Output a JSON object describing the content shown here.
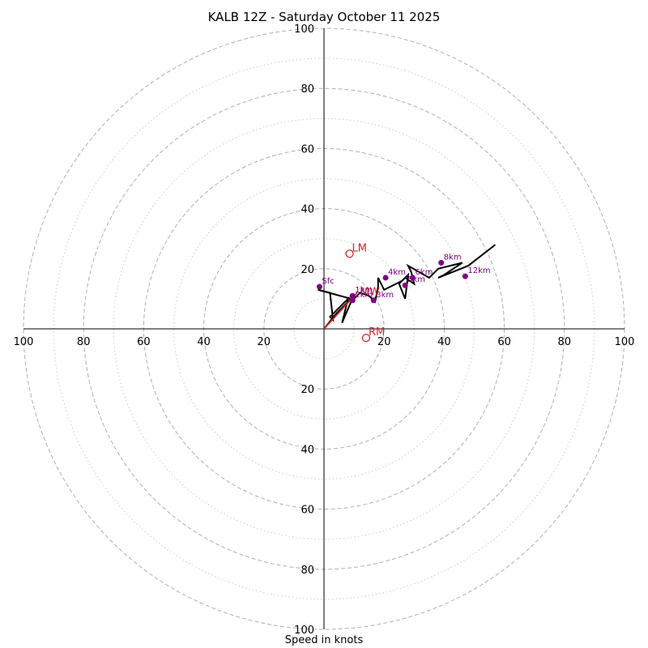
{
  "chart_data": {
    "type": "hodograph",
    "title": "KALB 12Z - Saturday October 11 2025",
    "xlabel": "Speed in knots",
    "max_speed": 100,
    "ring_major": [
      20,
      40,
      60,
      80,
      100
    ],
    "ring_minor": [
      10,
      30,
      50,
      70,
      90
    ],
    "tick_labels": {
      "left": [
        "100",
        "80",
        "60",
        "40",
        "20"
      ],
      "right": [
        "20",
        "40",
        "60",
        "80",
        "100"
      ],
      "top": [
        "20",
        "40",
        "60",
        "80",
        "100"
      ],
      "bottom": [
        "20",
        "40",
        "60",
        "80",
        "100"
      ]
    },
    "tick_values": [
      100,
      80,
      60,
      40,
      20
    ],
    "tick_values_pos": [
      20,
      40,
      60,
      80,
      100
    ],
    "hodograph_line": [
      [
        0,
        0
      ],
      [
        4,
        5
      ],
      [
        9,
        10
      ],
      [
        -2,
        13
      ],
      [
        2,
        12
      ],
      [
        3,
        3
      ],
      [
        2,
        4
      ],
      [
        8,
        10
      ],
      [
        6,
        2
      ],
      [
        9,
        9
      ],
      [
        12,
        12
      ],
      [
        15,
        11
      ],
      [
        17,
        9
      ],
      [
        18,
        14
      ],
      [
        18,
        17
      ],
      [
        20,
        13
      ],
      [
        24,
        15
      ],
      [
        26,
        16
      ],
      [
        28,
        18
      ],
      [
        27,
        10
      ],
      [
        25,
        15
      ],
      [
        27,
        17
      ],
      [
        30,
        15
      ],
      [
        29,
        19
      ],
      [
        28,
        21
      ],
      [
        35,
        17
      ],
      [
        38,
        20
      ],
      [
        46,
        22
      ],
      [
        40,
        18
      ],
      [
        38,
        17
      ],
      [
        48,
        21
      ],
      [
        57,
        28
      ]
    ],
    "height_markers": [
      {
        "label": "Sfc",
        "u": -1.5,
        "v": 14
      },
      {
        "label": "1km",
        "u": 9.5,
        "v": 11
      },
      {
        "label": "2km",
        "u": 9.5,
        "v": 9.5
      },
      {
        "label": "3km",
        "u": 16.5,
        "v": 9.5
      },
      {
        "label": "4km",
        "u": 20.5,
        "v": 17
      },
      {
        "label": "5km",
        "u": 27,
        "v": 14.5
      },
      {
        "label": "6km",
        "u": 29.5,
        "v": 17
      },
      {
        "label": "8km",
        "u": 39,
        "v": 22
      },
      {
        "label": "12km",
        "u": 47,
        "v": 17.5
      }
    ],
    "mean_wind_label": "MW",
    "mean_wind_line": [
      [
        0,
        0
      ],
      [
        11,
        12
      ]
    ],
    "storm_motion": [
      {
        "label": "LM",
        "u": 8.5,
        "v": 25
      },
      {
        "label": "RM",
        "u": 14,
        "v": -3
      }
    ],
    "colors": {
      "hodograph": "#000000",
      "markers": "#800080",
      "storm_motion": "#d62728",
      "rings": "#b0b0b0",
      "axes": "#000000"
    }
  }
}
